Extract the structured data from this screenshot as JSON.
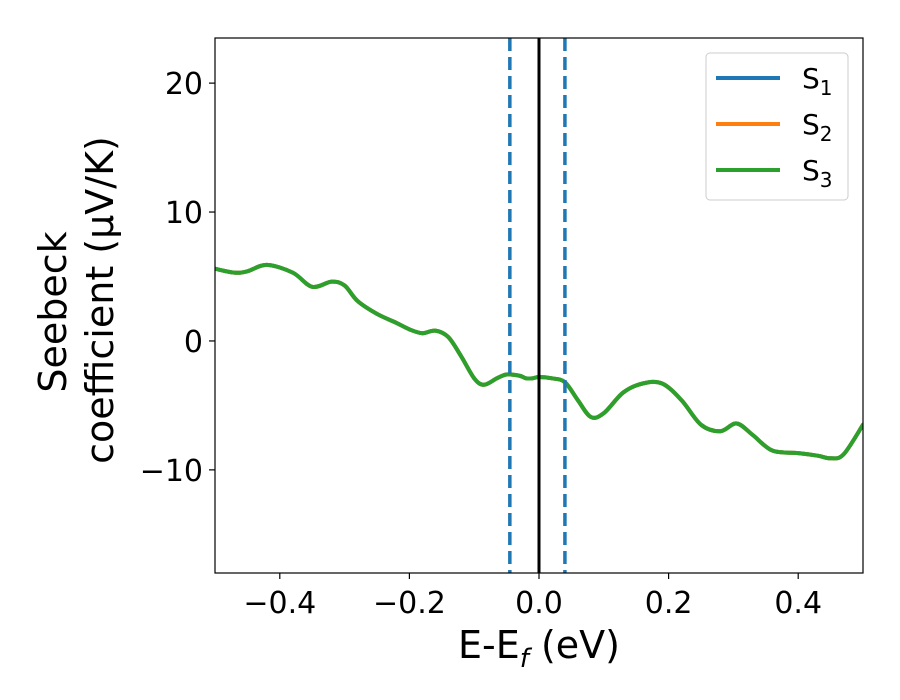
{
  "chart_data": {
    "type": "line",
    "xlabel": {
      "main": "E-E",
      "sub": "f",
      "unit": " (eV)"
    },
    "ylabel": {
      "line1": "Seebeck",
      "line2": "coefficient  (μV/K)"
    },
    "xlim": [
      -0.5,
      0.5
    ],
    "ylim": [
      -18,
      23.5
    ],
    "xticks": [
      -0.4,
      -0.2,
      0.0,
      0.2,
      0.4
    ],
    "xtick_labels": [
      "−0.4",
      "−0.2",
      "0.0",
      "0.2",
      "0.4"
    ],
    "yticks": [
      -10,
      0,
      10,
      20
    ],
    "ytick_labels": [
      "−10",
      "0",
      "10",
      "20"
    ],
    "grid": false,
    "legend_position": "top-right",
    "legend": [
      {
        "label": "S",
        "sub": "1",
        "color": "#1f77b4"
      },
      {
        "label": "S",
        "sub": "2",
        "color": "#ff7f0e"
      },
      {
        "label": "S",
        "sub": "3",
        "color": "#2ca02c"
      }
    ],
    "reference_lines": [
      {
        "x": 0.0,
        "style": "solid",
        "color": "#000000"
      },
      {
        "x": -0.045,
        "style": "dashed",
        "color": "#1f77b4"
      },
      {
        "x": 0.04,
        "style": "dashed",
        "color": "#1f77b4"
      }
    ],
    "x": [
      -0.5,
      -0.47,
      -0.45,
      -0.42,
      -0.38,
      -0.35,
      -0.32,
      -0.3,
      -0.28,
      -0.25,
      -0.22,
      -0.2,
      -0.18,
      -0.16,
      -0.14,
      -0.12,
      -0.1,
      -0.085,
      -0.065,
      -0.05,
      -0.03,
      -0.02,
      -0.01,
      0.0,
      0.02,
      0.04,
      0.06,
      0.08,
      0.1,
      0.13,
      0.16,
      0.19,
      0.22,
      0.25,
      0.28,
      0.305,
      0.33,
      0.36,
      0.4,
      0.43,
      0.45,
      0.47,
      0.5
    ],
    "series": [
      {
        "name": "S1",
        "color": "#1f77b4",
        "y": [
          5.6,
          5.3,
          5.4,
          5.9,
          5.3,
          4.2,
          4.6,
          4.3,
          3.1,
          2.1,
          1.4,
          0.9,
          0.6,
          0.8,
          0.3,
          -1.2,
          -2.9,
          -3.4,
          -2.9,
          -2.6,
          -2.7,
          -2.9,
          -2.9,
          -2.8,
          -2.9,
          -3.2,
          -4.6,
          -5.9,
          -5.6,
          -4.0,
          -3.3,
          -3.3,
          -4.6,
          -6.5,
          -7.0,
          -6.4,
          -7.3,
          -8.5,
          -8.7,
          -8.9,
          -9.1,
          -8.8,
          -6.5
        ]
      },
      {
        "name": "S2",
        "color": "#ff7f0e",
        "y": [
          5.6,
          5.3,
          5.4,
          5.9,
          5.3,
          4.2,
          4.6,
          4.3,
          3.1,
          2.1,
          1.4,
          0.9,
          0.6,
          0.8,
          0.3,
          -1.2,
          -2.9,
          -3.4,
          -2.9,
          -2.6,
          -2.7,
          -2.9,
          -2.9,
          -2.8,
          -2.9,
          -3.2,
          -4.6,
          -5.9,
          -5.6,
          -4.0,
          -3.3,
          -3.3,
          -4.6,
          -6.5,
          -7.0,
          -6.4,
          -7.3,
          -8.5,
          -8.7,
          -8.9,
          -9.1,
          -8.8,
          -6.5
        ]
      },
      {
        "name": "S3",
        "color": "#2ca02c",
        "y": [
          5.6,
          5.3,
          5.4,
          5.9,
          5.3,
          4.2,
          4.6,
          4.3,
          3.1,
          2.1,
          1.4,
          0.9,
          0.6,
          0.8,
          0.3,
          -1.2,
          -2.9,
          -3.4,
          -2.9,
          -2.6,
          -2.7,
          -2.9,
          -2.9,
          -2.8,
          -2.9,
          -3.2,
          -4.6,
          -5.9,
          -5.6,
          -4.0,
          -3.3,
          -3.3,
          -4.6,
          -6.5,
          -7.0,
          -6.4,
          -7.3,
          -8.5,
          -8.7,
          -8.9,
          -9.1,
          -8.8,
          -6.5
        ]
      }
    ]
  }
}
